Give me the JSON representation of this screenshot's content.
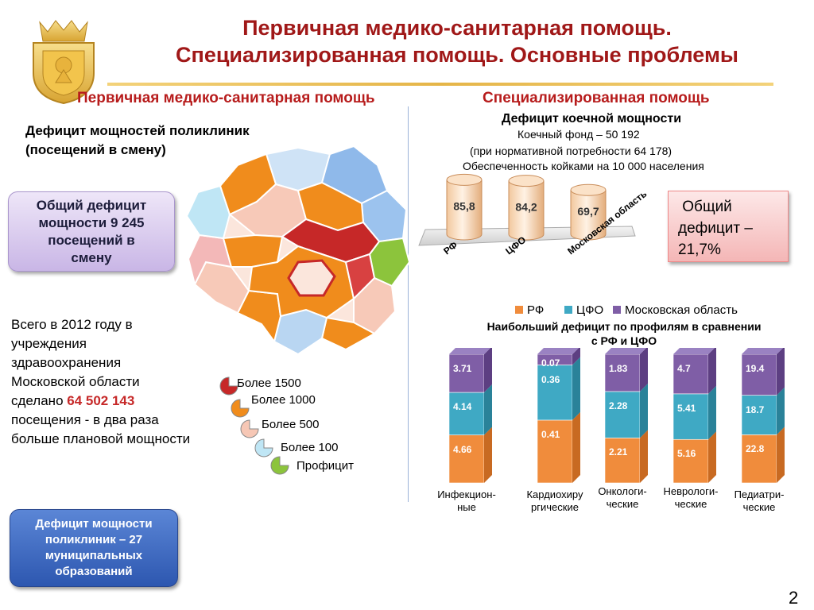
{
  "title": {
    "line1": "Первичная медико-санитарная помощь.",
    "line2": "Специализированная помощь. Основные проблемы"
  },
  "sections": {
    "left": "Первичная медико-санитарная помощь",
    "right": "Специализированная помощь"
  },
  "left_panel": {
    "heading_line1": "Дефицит мощностей поликлиник",
    "heading_line2": "(посещений в смену)",
    "deficit_box": [
      "Общий дефицит",
      "мощности 9 245",
      "посещений в",
      "смену"
    ],
    "body_parts": [
      "Всего в 2012 году в учреждения здравоохранения Московской области сделано ",
      "64 502 143",
      " посещения - в два раза больше плановой мощности"
    ],
    "bottom_box": [
      "Дефицит мощности",
      "поликлиник – 27",
      "муниципальных",
      "образований"
    ]
  },
  "map_legend": [
    {
      "label": "Более 1500",
      "color": "#c62828"
    },
    {
      "label": "Более 1000",
      "color": "#f08c1c"
    },
    {
      "label": "Более 500",
      "color": "#f6c7b5"
    },
    {
      "label": "Более 100",
      "color": "#bfe6f5"
    },
    {
      "label": "Профицит",
      "color": "#8cc43c"
    }
  ],
  "right_panel": {
    "heading": "Дефицит коечной мощности",
    "line1": "Коечный фонд  – 50 192",
    "line2": "(при нормативной потребности 64 178)",
    "line3": "Обеспеченность койками на 10 000 населения",
    "pink_box": [
      " Общий",
      "дефицит –",
      "21,7%"
    ],
    "chart2_title_line1": "Наибольший дефицит по профилям в сравнении",
    "chart2_title_line2": "с РФ  и ЦФО"
  },
  "page_number": "2",
  "colors": {
    "title": "#a01818",
    "rf": "#f08c3c",
    "cfo": "#3fa9c4",
    "mo": "#7f5ea6"
  },
  "chart_data": [
    {
      "type": "bar",
      "title": "Обеспеченность койками на 10 000 населения",
      "categories": [
        "РФ",
        "ЦФО",
        "Московская область"
      ],
      "values": [
        85.8,
        84.2,
        69.7
      ],
      "value_labels": [
        "85,8",
        "84,2",
        "69,7"
      ]
    },
    {
      "type": "bar",
      "stacked": true,
      "title": "Наибольший дефицит по профилям в сравнении с РФ  и ЦФО",
      "categories": [
        [
          "Инфекцион-",
          "ные"
        ],
        [
          "Кардиохиру",
          "ргические"
        ],
        [
          "Онкологи-",
          "ческие"
        ],
        [
          "Неврологи-",
          "ческие"
        ],
        [
          "Педиатри-",
          "ческие"
        ]
      ],
      "series": [
        {
          "name": "РФ",
          "values": [
            4.66,
            0.41,
            2.21,
            5.16,
            22.8
          ],
          "labels": [
            "4.66",
            "0.41",
            "2.21",
            "5.16",
            "22.8"
          ]
        },
        {
          "name": "ЦФО",
          "values": [
            4.14,
            0.36,
            2.28,
            5.41,
            18.7
          ],
          "labels": [
            "4.14",
            "0.36",
            "2.28",
            "5.41",
            "18.7"
          ]
        },
        {
          "name": "Московская область",
          "values": [
            3.71,
            0.07,
            1.83,
            4.7,
            19.4
          ],
          "labels": [
            "3.71",
            "0.07",
            "1.83",
            "4.7",
            "19.4"
          ]
        }
      ],
      "legend": "top"
    }
  ]
}
